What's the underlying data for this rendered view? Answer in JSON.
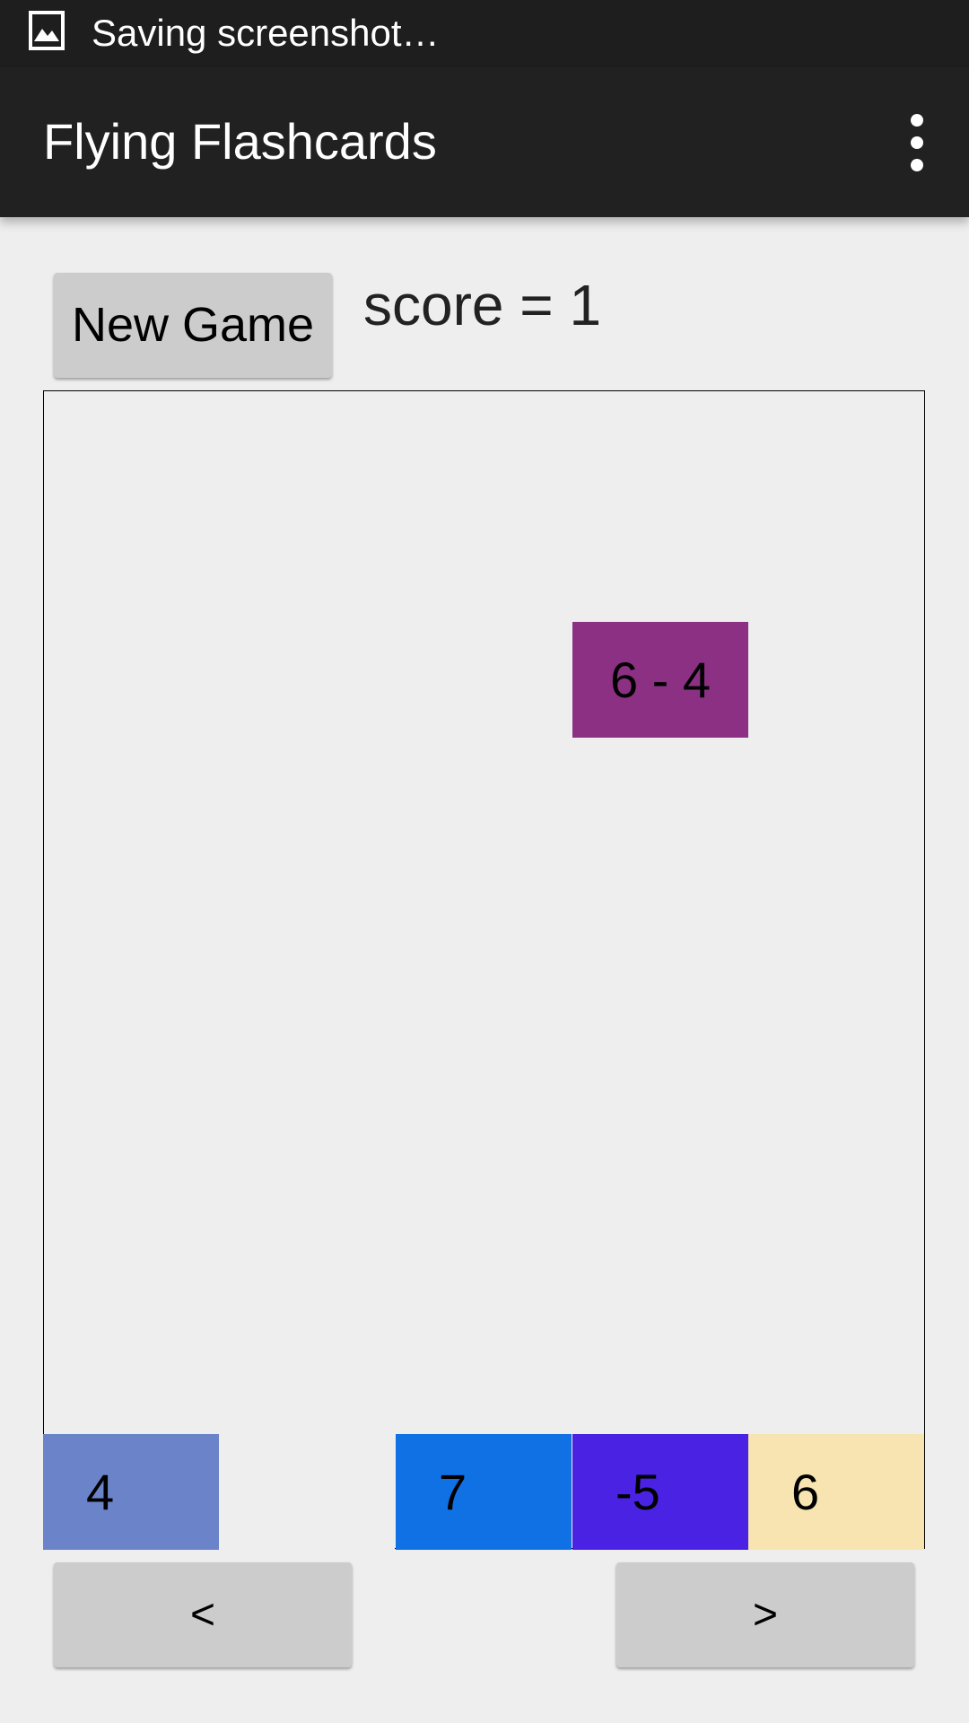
{
  "status_bar": {
    "icon": "image-icon",
    "text": "Saving screenshot…"
  },
  "action_bar": {
    "title": "Flying Flashcards",
    "menu_icon": "overflow-menu-icon"
  },
  "controls": {
    "new_game_label": "New Game",
    "score_text": "score = 1"
  },
  "board": {
    "question": {
      "text": "6 - 4",
      "color": "#8b3082"
    },
    "answers": [
      {
        "text": "4",
        "color": "#6b84c9"
      },
      {
        "text": "",
        "color": "#eeeeee"
      },
      {
        "text": "7",
        "color": "#1071e5"
      },
      {
        "text": "-5",
        "color": "#4a22e3"
      },
      {
        "text": "6",
        "color": "#f7e4b0"
      }
    ]
  },
  "navigation": {
    "prev_label": "<",
    "next_label": ">"
  }
}
